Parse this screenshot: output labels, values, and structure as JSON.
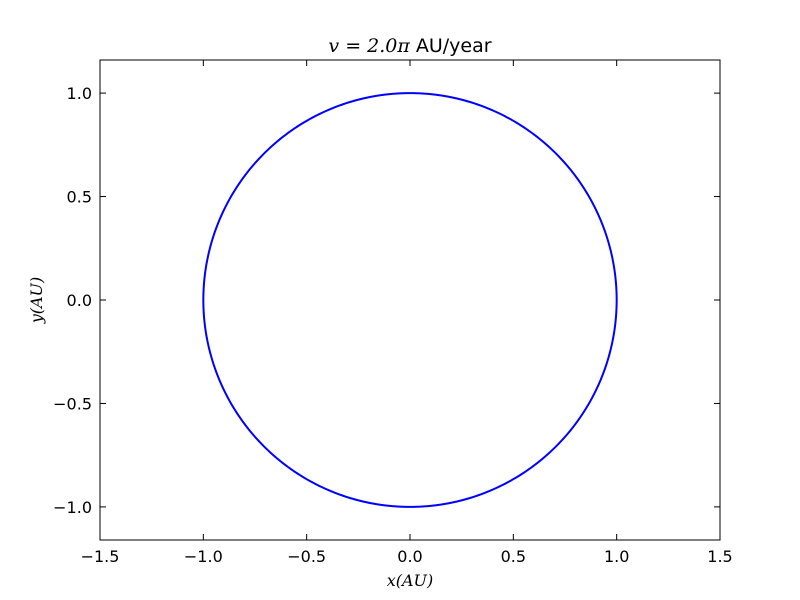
{
  "chart_data": {
    "type": "line",
    "title": {
      "math": "v = 2.0π",
      "text": "AU/year"
    },
    "xlabel": "x(AU)",
    "ylabel": "y(AU)",
    "xlim": [
      -1.5,
      1.5
    ],
    "ylim": [
      -1.16,
      1.16
    ],
    "x_ticks": [
      -1.5,
      -1.0,
      -0.5,
      0.0,
      0.5,
      1.0,
      1.5
    ],
    "x_tick_labels": [
      "−1.5",
      "−1.0",
      "−0.5",
      "0.0",
      "0.5",
      "1.0",
      "1.5"
    ],
    "y_ticks": [
      -1.0,
      -0.5,
      0.0,
      0.5,
      1.0
    ],
    "y_tick_labels": [
      "−1.0",
      "−0.5",
      "0.0",
      "0.5",
      "1.0"
    ],
    "grid": false,
    "series": [
      {
        "shape": "circle",
        "center": [
          0.0,
          0.0
        ],
        "radius": 1.0,
        "color": "#0000ff"
      }
    ]
  }
}
